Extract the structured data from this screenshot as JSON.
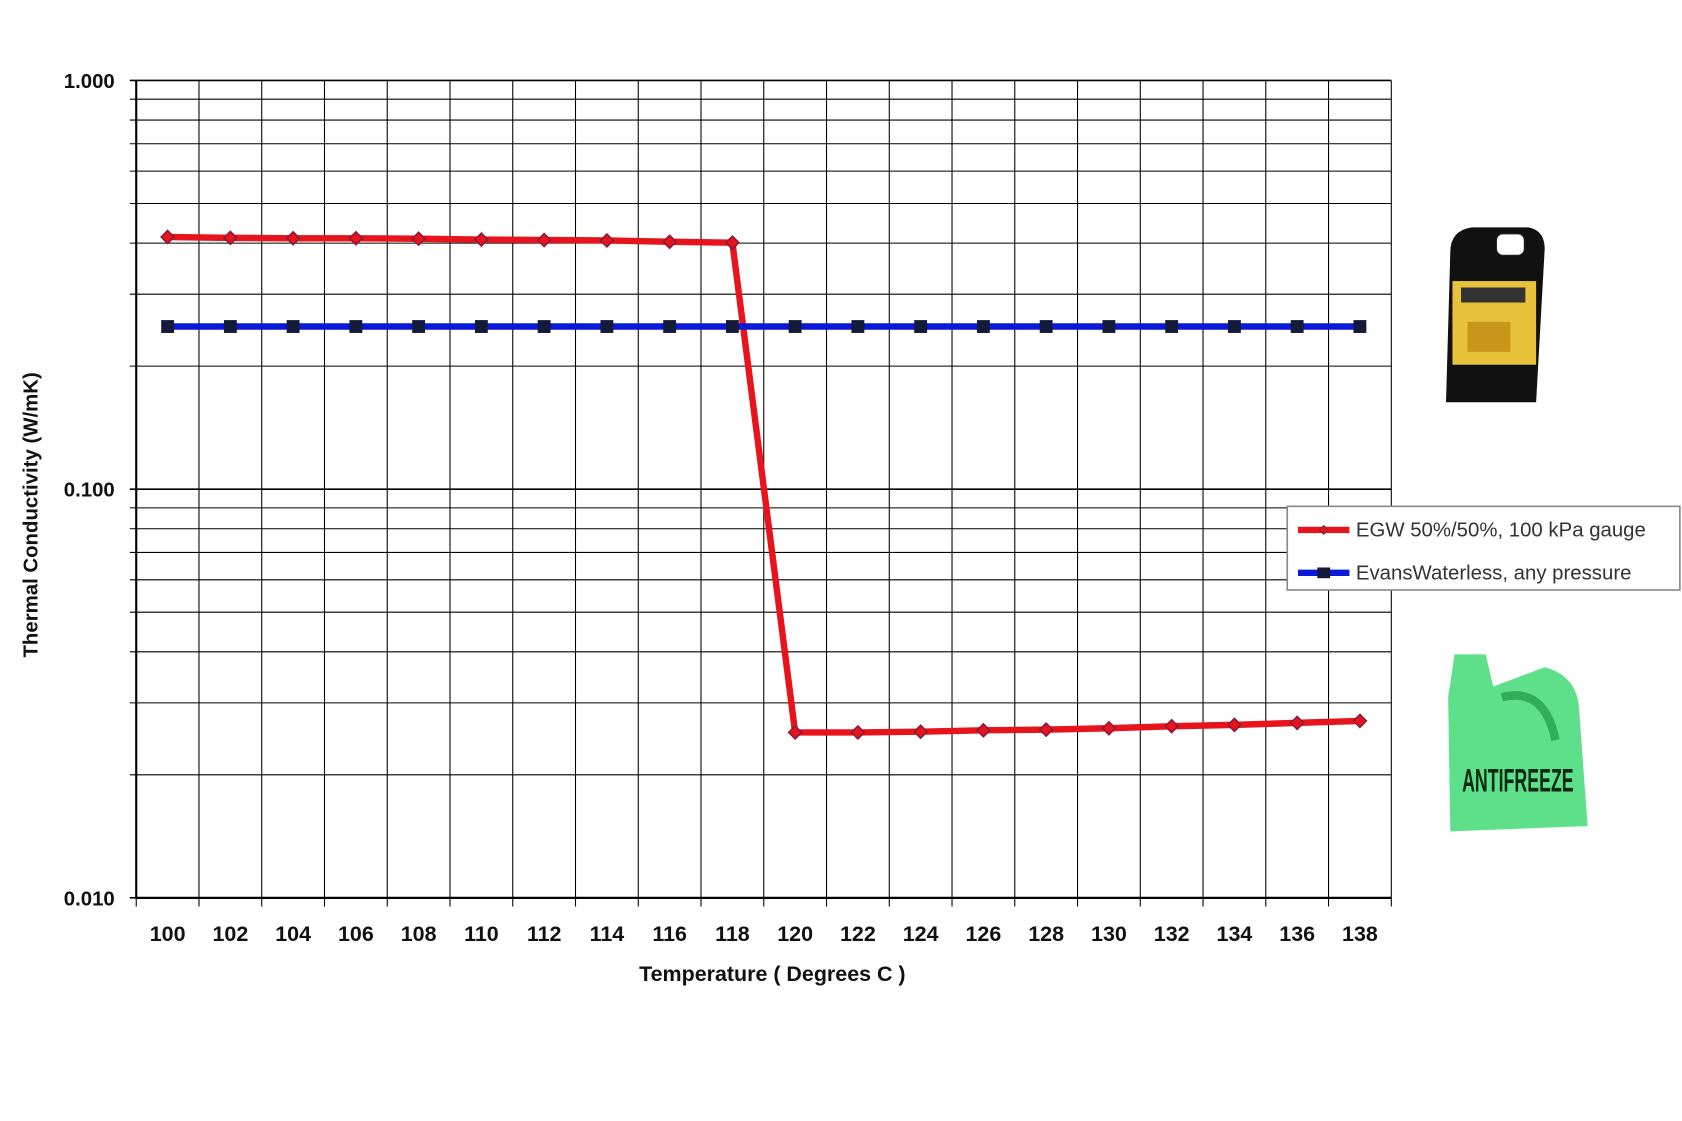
{
  "chart_data": {
    "type": "line",
    "y_label": "Thermal Conductivity  (W/mK)",
    "x_label": "Temperature ( Degrees  C )",
    "categories": [
      "100",
      "102",
      "104",
      "106",
      "108",
      "110",
      "112",
      "114",
      "116",
      "118",
      "120",
      "122",
      "124",
      "126",
      "128",
      "130",
      "132",
      "134",
      "136",
      "138"
    ],
    "series": [
      {
        "name": "EGW 50%/50%,  100 kPa gauge",
        "color": "#e8141c",
        "marker": "diamond",
        "values": [
          0.414,
          0.412,
          0.411,
          0.411,
          0.41,
          0.408,
          0.407,
          0.406,
          0.403,
          0.401,
          0.0254,
          0.0254,
          0.0255,
          0.0257,
          0.0258,
          0.026,
          0.0263,
          0.0265,
          0.0268,
          0.0271
        ]
      },
      {
        "name": "EvansWaterless, any pressure",
        "color": "#0a18d8",
        "marker": "square",
        "values": [
          0.25,
          0.25,
          0.25,
          0.25,
          0.25,
          0.25,
          0.25,
          0.25,
          0.25,
          0.25,
          0.25,
          0.25,
          0.25,
          0.25,
          0.25,
          0.25,
          0.25,
          0.25,
          0.25,
          0.25
        ]
      }
    ],
    "ylim": [
      0.01,
      1
    ],
    "yticks": [
      {
        "value": 1,
        "label": "1.000"
      },
      {
        "value": 0.1,
        "label": "0.100"
      },
      {
        "value": 0.01,
        "label": "0.010"
      }
    ],
    "log_y": true,
    "grid": true,
    "legend": "right",
    "image_label": "ANTIFREEZE"
  }
}
